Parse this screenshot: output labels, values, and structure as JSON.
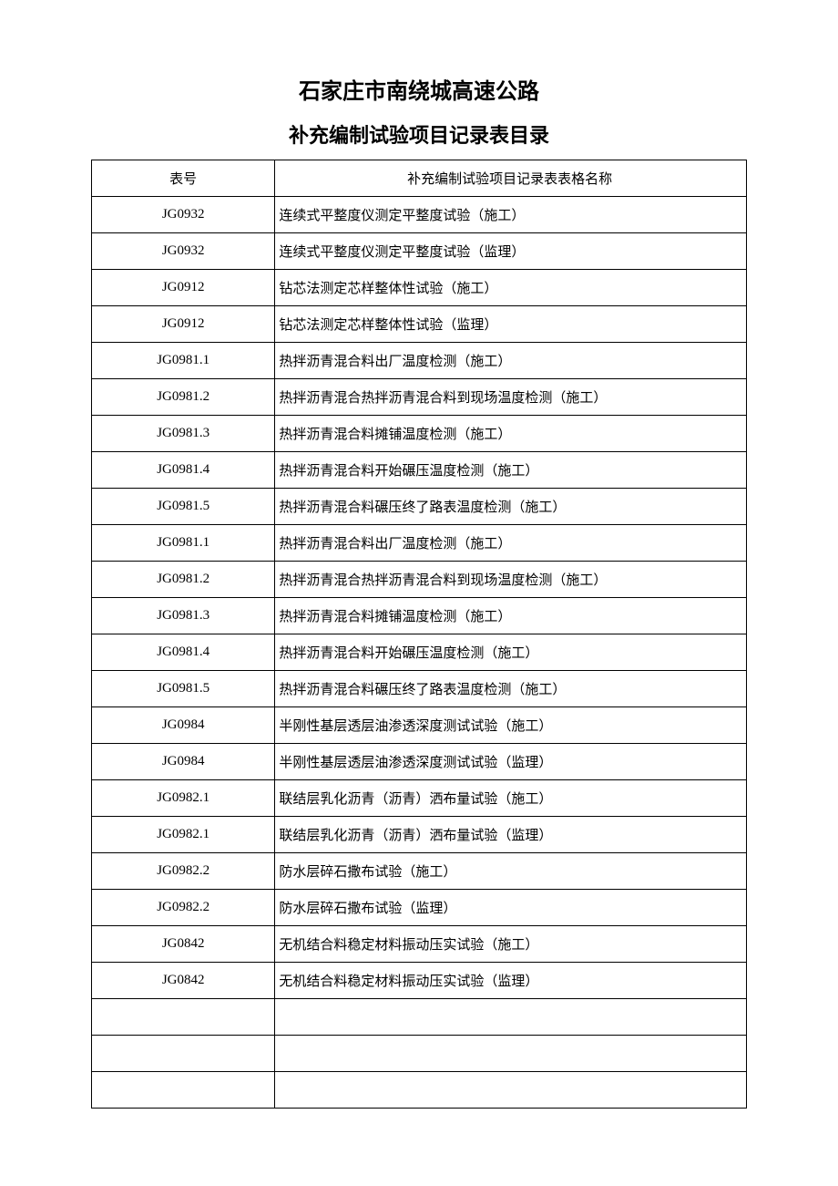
{
  "title_main": "石家庄市南绕城高速公路",
  "title_sub": "补充编制试验项目记录表目录",
  "table": {
    "columns": [
      "表号",
      "补充编制试验项目记录表表格名称"
    ],
    "col_widths": [
      "28%",
      "72%"
    ],
    "border_color": "#000000",
    "text_color": "#000000",
    "background_color": "#ffffff",
    "font_size": 15,
    "rows": [
      [
        "JG0932",
        "连续式平整度仪测定平整度试验（施工）"
      ],
      [
        "JG0932",
        "连续式平整度仪测定平整度试验（监理）"
      ],
      [
        "JG0912",
        "钻芯法测定芯样整体性试验（施工）"
      ],
      [
        "JG0912",
        "钻芯法测定芯样整体性试验（监理）"
      ],
      [
        "JG0981.1",
        "热拌沥青混合料出厂温度检测（施工）"
      ],
      [
        "JG0981.2",
        "热拌沥青混合热拌沥青混合料到现场温度检测（施工）"
      ],
      [
        "JG0981.3",
        "热拌沥青混合料摊铺温度检测（施工）"
      ],
      [
        "JG0981.4",
        "热拌沥青混合料开始碾压温度检测（施工）"
      ],
      [
        "JG0981.5",
        "热拌沥青混合料碾压终了路表温度检测（施工）"
      ],
      [
        "JG0981.1",
        "热拌沥青混合料出厂温度检测（施工）"
      ],
      [
        "JG0981.2",
        "热拌沥青混合热拌沥青混合料到现场温度检测（施工）"
      ],
      [
        "JG0981.3",
        "热拌沥青混合料摊铺温度检测（施工）"
      ],
      [
        "JG0981.4",
        "热拌沥青混合料开始碾压温度检测（施工）"
      ],
      [
        "JG0981.5",
        "热拌沥青混合料碾压终了路表温度检测（施工）"
      ],
      [
        "JG0984",
        "半刚性基层透层油渗透深度测试试验（施工）"
      ],
      [
        "JG0984",
        "半刚性基层透层油渗透深度测试试验（监理）"
      ],
      [
        "JG0982.1",
        "联结层乳化沥青（沥青）洒布量试验（施工）"
      ],
      [
        "JG0982.1",
        "联结层乳化沥青（沥青）洒布量试验（监理）"
      ],
      [
        "JG0982.2",
        "防水层碎石撒布试验（施工）"
      ],
      [
        "JG0982.2",
        "防水层碎石撒布试验（监理）"
      ],
      [
        "JG0842",
        "无机结合料稳定材料振动压实试验（施工）"
      ],
      [
        "JG0842",
        "无机结合料稳定材料振动压实试验（监理）"
      ],
      [
        "",
        ""
      ],
      [
        "",
        ""
      ],
      [
        "",
        ""
      ]
    ]
  }
}
